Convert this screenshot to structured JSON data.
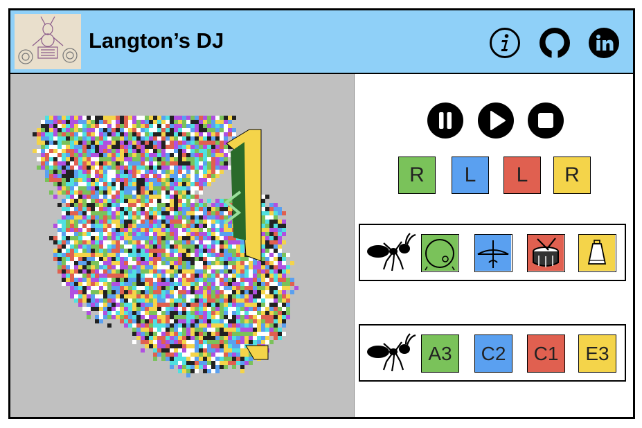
{
  "header": {
    "title": "Langton’s DJ",
    "bg_color": "#8fd0f8",
    "icons": [
      "info-icon",
      "github-icon",
      "linkedin-icon"
    ]
  },
  "simulation": {
    "bg_color": "#c0c0c0",
    "cell_colors": [
      "#7ac25a",
      "#5aa0f0",
      "#e06050",
      "#f4d44a",
      "#ffffff",
      "#222222",
      "#b050e0",
      "#50e0e0"
    ]
  },
  "playback": {
    "buttons": [
      "pause-icon",
      "play-icon",
      "stop-icon"
    ]
  },
  "rules": [
    {
      "label": "R",
      "color": "#7ac25a"
    },
    {
      "label": "L",
      "color": "#5aa0f0"
    },
    {
      "label": "L",
      "color": "#e06050"
    },
    {
      "label": "R",
      "color": "#f4d44a"
    }
  ],
  "instruments": [
    {
      "icon": "bass-drum-icon",
      "color": "#7ac25a"
    },
    {
      "icon": "cymbal-icon",
      "color": "#5aa0f0"
    },
    {
      "icon": "snare-drum-icon",
      "color": "#e06050"
    },
    {
      "icon": "cowbell-icon",
      "color": "#f4d44a"
    }
  ],
  "notes": [
    {
      "label": "A3",
      "color": "#7ac25a"
    },
    {
      "label": "C2",
      "color": "#5aa0f0"
    },
    {
      "label": "C1",
      "color": "#e06050"
    },
    {
      "label": "E3",
      "color": "#f4d44a"
    }
  ]
}
